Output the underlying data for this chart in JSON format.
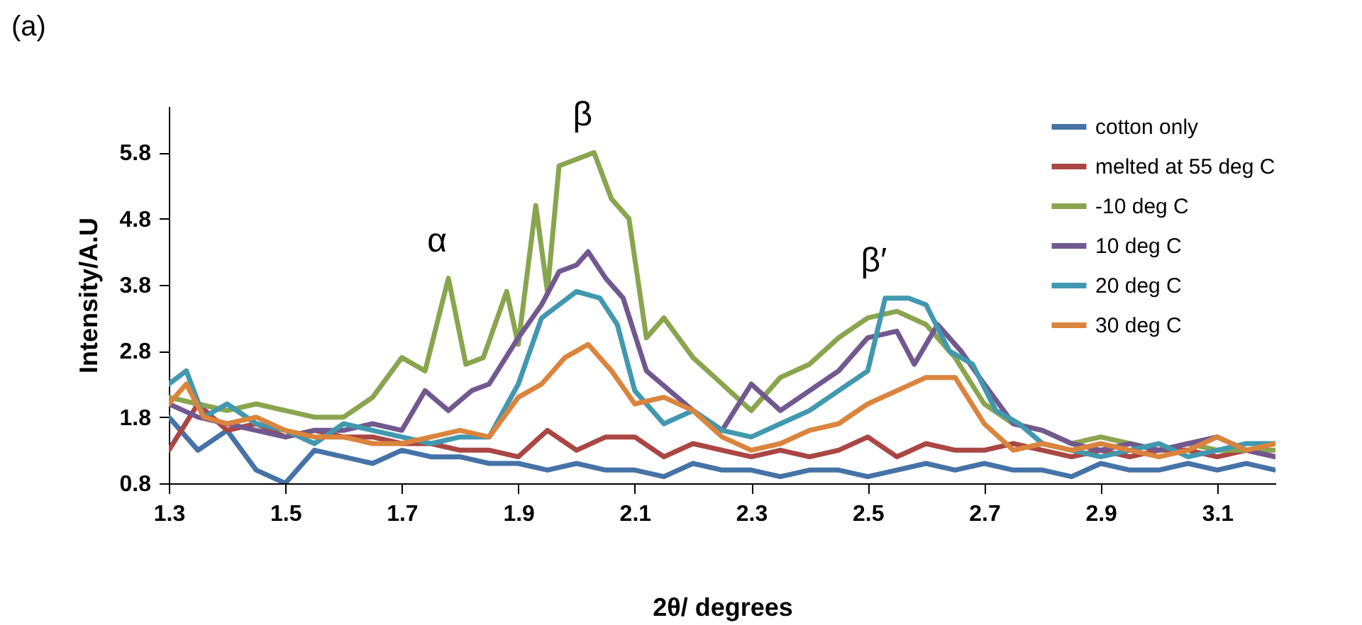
{
  "chart_data": {
    "type": "line",
    "xlabel": "2θ/ degrees",
    "ylabel": "Intensity/A.U",
    "xlim": [
      1.3,
      3.2
    ],
    "xticks": [
      1.3,
      1.5,
      1.7,
      1.9,
      2.1,
      2.3,
      2.5,
      2.7,
      2.9,
      3.1
    ],
    "ylim": [
      0.8,
      6.5
    ],
    "yticks": [
      0.8,
      1.8,
      2.8,
      3.8,
      4.8,
      5.8
    ],
    "legend": "top right",
    "line_style": "solid",
    "annotations": [
      "(a)",
      {
        "text": "α",
        "x": 1.78,
        "y": 3.9
      },
      {
        "text": "β",
        "x": 2.03,
        "y": 5.8
      },
      {
        "text": "β′",
        "x": 2.53,
        "y": 3.6
      }
    ],
    "series": [
      {
        "name": "cotton only",
        "color": "#4572a7",
        "x": [
          1.3,
          1.35,
          1.4,
          1.45,
          1.5,
          1.55,
          1.6,
          1.65,
          1.7,
          1.75,
          1.8,
          1.85,
          1.9,
          1.95,
          2.0,
          2.05,
          2.1,
          2.15,
          2.2,
          2.25,
          2.3,
          2.35,
          2.4,
          2.45,
          2.5,
          2.55,
          2.6,
          2.65,
          2.7,
          2.75,
          2.8,
          2.85,
          2.9,
          2.95,
          3.0,
          3.05,
          3.1,
          3.15,
          3.2
        ],
        "values": [
          1.8,
          1.3,
          1.6,
          1.0,
          0.8,
          1.3,
          1.2,
          1.1,
          1.3,
          1.2,
          1.2,
          1.1,
          1.1,
          1.0,
          1.1,
          1.0,
          1.0,
          0.9,
          1.1,
          1.0,
          1.0,
          0.9,
          1.0,
          1.0,
          0.9,
          1.0,
          1.1,
          1.0,
          1.1,
          1.0,
          1.0,
          0.9,
          1.1,
          1.0,
          1.0,
          1.1,
          1.0,
          1.1,
          1.0
        ]
      },
      {
        "name": "melted at 55 deg C",
        "color": "#aa4643",
        "x": [
          1.3,
          1.35,
          1.4,
          1.45,
          1.5,
          1.55,
          1.6,
          1.65,
          1.7,
          1.75,
          1.8,
          1.85,
          1.9,
          1.95,
          2.0,
          2.05,
          2.1,
          2.15,
          2.2,
          2.25,
          2.3,
          2.35,
          2.4,
          2.45,
          2.5,
          2.55,
          2.6,
          2.65,
          2.7,
          2.75,
          2.8,
          2.85,
          2.9,
          2.95,
          3.0,
          3.05,
          3.1,
          3.15,
          3.2
        ],
        "values": [
          1.3,
          2.0,
          1.6,
          1.7,
          1.5,
          1.6,
          1.5,
          1.5,
          1.4,
          1.4,
          1.3,
          1.3,
          1.2,
          1.6,
          1.3,
          1.5,
          1.5,
          1.2,
          1.4,
          1.3,
          1.2,
          1.3,
          1.2,
          1.3,
          1.5,
          1.2,
          1.4,
          1.3,
          1.3,
          1.4,
          1.3,
          1.2,
          1.3,
          1.2,
          1.3,
          1.3,
          1.2,
          1.3,
          1.2
        ]
      },
      {
        "name": "-10 deg C",
        "color": "#89a54e",
        "x": [
          1.3,
          1.35,
          1.4,
          1.45,
          1.5,
          1.55,
          1.6,
          1.65,
          1.7,
          1.74,
          1.78,
          1.81,
          1.84,
          1.88,
          1.9,
          1.93,
          1.95,
          1.97,
          2.0,
          2.03,
          2.06,
          2.09,
          2.12,
          2.15,
          2.2,
          2.25,
          2.3,
          2.35,
          2.4,
          2.45,
          2.5,
          2.55,
          2.6,
          2.65,
          2.7,
          2.75,
          2.8,
          2.85,
          2.9,
          2.95,
          3.0,
          3.05,
          3.1,
          3.15,
          3.2
        ],
        "values": [
          2.1,
          2.0,
          1.9,
          2.0,
          1.9,
          1.8,
          1.8,
          2.1,
          2.7,
          2.5,
          3.9,
          2.6,
          2.7,
          3.7,
          2.9,
          5.0,
          3.7,
          5.6,
          5.7,
          5.8,
          5.1,
          4.8,
          3.0,
          3.3,
          2.7,
          2.3,
          1.9,
          2.4,
          2.6,
          3.0,
          3.3,
          3.4,
          3.2,
          2.7,
          2.0,
          1.7,
          1.6,
          1.4,
          1.5,
          1.4,
          1.3,
          1.4,
          1.3,
          1.3,
          1.3
        ]
      },
      {
        "name": "10 deg C",
        "color": "#71588f",
        "x": [
          1.3,
          1.35,
          1.4,
          1.45,
          1.5,
          1.55,
          1.6,
          1.65,
          1.7,
          1.74,
          1.78,
          1.82,
          1.85,
          1.9,
          1.94,
          1.97,
          2.0,
          2.02,
          2.05,
          2.08,
          2.12,
          2.16,
          2.2,
          2.25,
          2.3,
          2.35,
          2.4,
          2.45,
          2.5,
          2.55,
          2.58,
          2.62,
          2.66,
          2.7,
          2.75,
          2.8,
          2.85,
          2.9,
          2.95,
          3.0,
          3.05,
          3.1,
          3.15,
          3.2
        ],
        "values": [
          2.0,
          1.8,
          1.7,
          1.6,
          1.5,
          1.6,
          1.6,
          1.7,
          1.6,
          2.2,
          1.9,
          2.2,
          2.3,
          3.0,
          3.5,
          4.0,
          4.1,
          4.3,
          3.9,
          3.6,
          2.5,
          2.2,
          1.9,
          1.6,
          2.3,
          1.9,
          2.2,
          2.5,
          3.0,
          3.1,
          2.6,
          3.2,
          2.8,
          2.3,
          1.7,
          1.6,
          1.4,
          1.3,
          1.4,
          1.3,
          1.4,
          1.5,
          1.3,
          1.2
        ]
      },
      {
        "name": "20 deg C",
        "color": "#4198af",
        "x": [
          1.3,
          1.33,
          1.36,
          1.4,
          1.45,
          1.5,
          1.55,
          1.6,
          1.65,
          1.7,
          1.75,
          1.8,
          1.85,
          1.9,
          1.94,
          1.97,
          2.0,
          2.04,
          2.07,
          2.1,
          2.15,
          2.2,
          2.25,
          2.3,
          2.35,
          2.4,
          2.45,
          2.5,
          2.53,
          2.57,
          2.6,
          2.64,
          2.68,
          2.72,
          2.76,
          2.8,
          2.85,
          2.9,
          2.95,
          3.0,
          3.05,
          3.1,
          3.15,
          3.2
        ],
        "values": [
          2.3,
          2.5,
          1.8,
          2.0,
          1.7,
          1.6,
          1.4,
          1.7,
          1.6,
          1.5,
          1.4,
          1.5,
          1.5,
          2.3,
          3.3,
          3.5,
          3.7,
          3.6,
          3.2,
          2.2,
          1.7,
          1.9,
          1.6,
          1.5,
          1.7,
          1.9,
          2.2,
          2.5,
          3.6,
          3.6,
          3.5,
          2.8,
          2.6,
          1.9,
          1.7,
          1.4,
          1.3,
          1.2,
          1.3,
          1.4,
          1.2,
          1.3,
          1.4,
          1.4
        ]
      },
      {
        "name": "30 deg C",
        "color": "#db843d",
        "x": [
          1.3,
          1.33,
          1.36,
          1.4,
          1.45,
          1.5,
          1.55,
          1.6,
          1.65,
          1.7,
          1.75,
          1.8,
          1.85,
          1.9,
          1.94,
          1.98,
          2.02,
          2.06,
          2.1,
          2.15,
          2.2,
          2.25,
          2.3,
          2.35,
          2.4,
          2.45,
          2.5,
          2.55,
          2.6,
          2.65,
          2.7,
          2.75,
          2.8,
          2.85,
          2.9,
          2.95,
          3.0,
          3.05,
          3.1,
          3.15,
          3.2
        ],
        "values": [
          2.0,
          2.3,
          1.8,
          1.7,
          1.8,
          1.6,
          1.5,
          1.5,
          1.4,
          1.4,
          1.5,
          1.6,
          1.5,
          2.1,
          2.3,
          2.7,
          2.9,
          2.5,
          2.0,
          2.1,
          1.9,
          1.5,
          1.3,
          1.4,
          1.6,
          1.7,
          2.0,
          2.2,
          2.4,
          2.4,
          1.7,
          1.3,
          1.4,
          1.3,
          1.4,
          1.3,
          1.2,
          1.3,
          1.5,
          1.3,
          1.4
        ]
      }
    ]
  }
}
